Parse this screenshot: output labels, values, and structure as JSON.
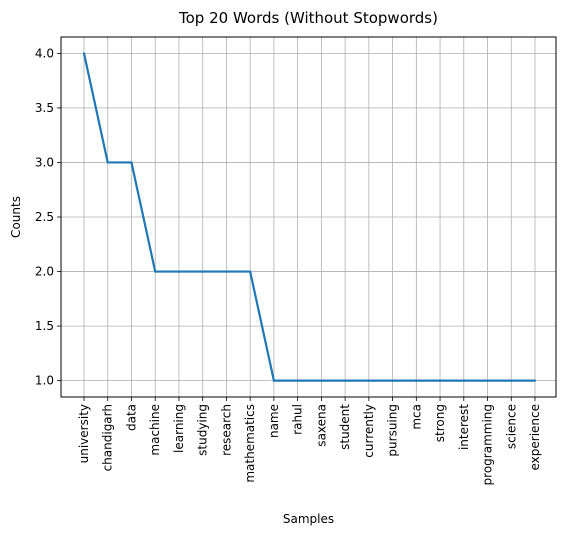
{
  "chart_data": {
    "type": "line",
    "title": "Top 20 Words (Without Stopwords)",
    "xlabel": "Samples",
    "ylabel": "Counts",
    "categories": [
      "university",
      "chandigarh",
      "data",
      "machine",
      "learning",
      "studying",
      "research",
      "mathematics",
      "name",
      "rahul",
      "saxena",
      "student",
      "currently",
      "pursuing",
      "mca",
      "strong",
      "interest",
      "programming",
      "science",
      "experience"
    ],
    "values": [
      4,
      3,
      3,
      2,
      2,
      2,
      2,
      2,
      1,
      1,
      1,
      1,
      1,
      1,
      1,
      1,
      1,
      1,
      1,
      1
    ],
    "y_ticks": [
      "1.0",
      "1.5",
      "2.0",
      "2.5",
      "3.0",
      "3.5",
      "4.0"
    ],
    "ylim": [
      0.85,
      4.15
    ],
    "grid": true,
    "line_color": "#1f77b4",
    "grid_color": "#b0b0b0"
  }
}
